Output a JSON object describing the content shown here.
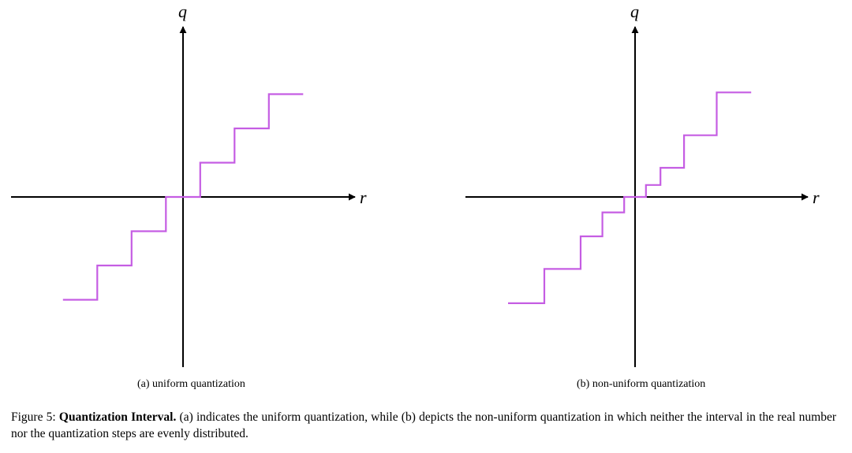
{
  "panels": [
    {
      "id": "a",
      "subcaption": "(a) uniform quantization",
      "x_label": "r",
      "y_label": "q",
      "steps": [
        {
          "x_start": -3.5,
          "x_end": -2.5,
          "level": -3
        },
        {
          "x_start": -2.5,
          "x_end": -1.5,
          "level": -2
        },
        {
          "x_start": -1.5,
          "x_end": -0.5,
          "level": -1
        },
        {
          "x_start": -0.5,
          "x_end": 0.5,
          "level": 0
        },
        {
          "x_start": 0.5,
          "x_end": 1.5,
          "level": 1
        },
        {
          "x_start": 1.5,
          "x_end": 2.5,
          "level": 2
        },
        {
          "x_start": 2.5,
          "x_end": 3.5,
          "level": 3
        }
      ]
    },
    {
      "id": "b",
      "subcaption": "(b) non-uniform quantization",
      "x_label": "r",
      "y_label": "q",
      "steps": [
        {
          "x_start": -3.5,
          "x_end": -2.5,
          "level": -3.1
        },
        {
          "x_start": -2.5,
          "x_end": -1.5,
          "level": -2.1
        },
        {
          "x_start": -1.5,
          "x_end": -0.9,
          "level": -1.15
        },
        {
          "x_start": -0.9,
          "x_end": -0.3,
          "level": -0.45
        },
        {
          "x_start": -0.3,
          "x_end": 0.3,
          "level": 0
        },
        {
          "x_start": 0.3,
          "x_end": 0.7,
          "level": 0.35
        },
        {
          "x_start": 0.7,
          "x_end": 1.35,
          "level": 0.85
        },
        {
          "x_start": 1.35,
          "x_end": 2.25,
          "level": 1.8
        },
        {
          "x_start": 2.25,
          "x_end": 3.2,
          "level": 3.05
        }
      ]
    }
  ],
  "caption": {
    "prefix": "Figure 5: ",
    "bold": "Quantization Interval.",
    "rest": " (a) indicates the uniform quantization, while (b) depicts the non-uniform quantization in which neither the interval in the real number nor the quantization steps are evenly distributed."
  },
  "colors": {
    "staircase": "#c55de3",
    "axis": "#000000"
  }
}
